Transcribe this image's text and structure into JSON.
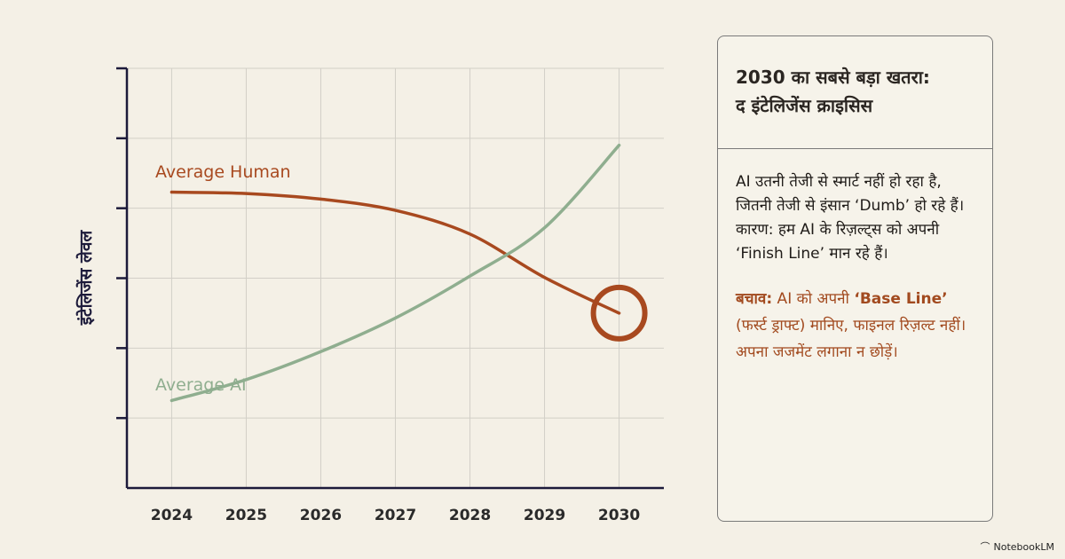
{
  "chart_data": {
    "type": "line",
    "x": [
      2024,
      2025,
      2026,
      2027,
      2028,
      2029,
      2030
    ],
    "xlim": [
      2023.4,
      2030.6
    ],
    "ylim": [
      0,
      6
    ],
    "ylabel": "इंटेलिजेंस लेवल",
    "grid": true,
    "series": [
      {
        "name": "Average Human",
        "color": "#a8491f",
        "values": [
          4.23,
          4.21,
          4.13,
          3.97,
          3.63,
          3.01,
          2.5
        ]
      },
      {
        "name": "Average AI",
        "color": "#8fae8f",
        "values": [
          1.25,
          1.55,
          1.95,
          2.43,
          3.03,
          3.72,
          4.9
        ]
      }
    ],
    "annotation": {
      "type": "circle",
      "x": 2030,
      "y": 2.5,
      "color": "#a8491f"
    }
  },
  "card": {
    "title_line1": "2030 का सबसे बड़ा खतरा:",
    "title_line2": "द इंटेलिजेंस क्राइसिस",
    "body": "AI उतनी तेजी से स्मार्ट नहीं हो रहा है, जितनी तेजी से इंसान ‘Dumb’ हो रहे हैं। कारण: हम AI के रिज़ल्ट्स को अपनी ‘Finish Line’ मान रहे हैं।",
    "tip_label": "बचाव:",
    "tip_pre": " AI को अपनी ",
    "tip_bold": "‘Base Line’",
    "tip_post": " (फर्स्ट ड्राफ्ट) मानिए, फाइनल रिज़ल्ट नहीं। अपना जजमेंट लगाना न छोड़ें।"
  },
  "brand": {
    "name": "NotebookLM",
    "icon": "notebook-icon"
  }
}
